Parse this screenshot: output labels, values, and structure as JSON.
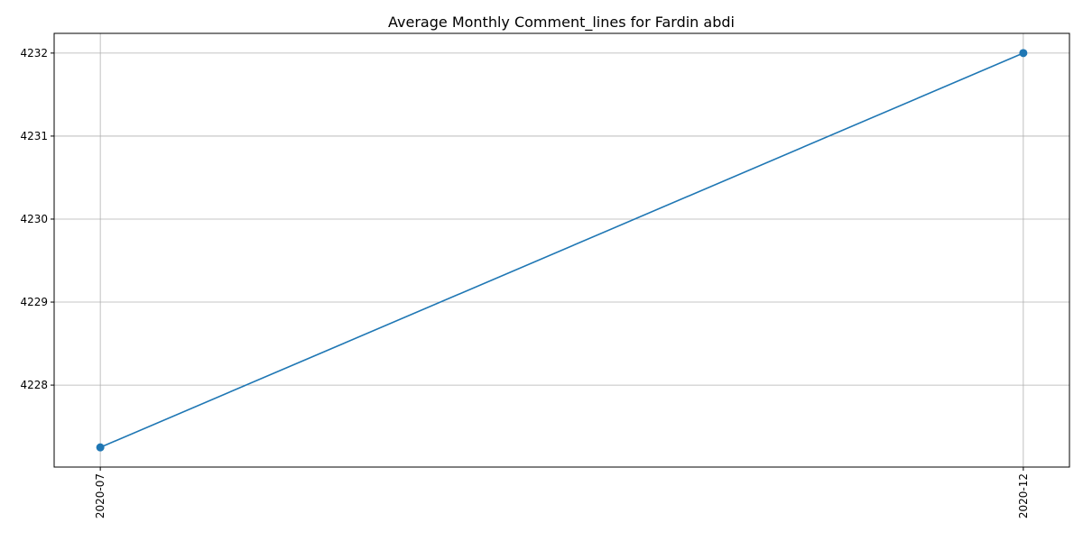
{
  "chart_data": {
    "type": "line",
    "title": "Average Monthly Comment_lines for Fardin abdi",
    "xlabel": "",
    "ylabel": "",
    "x": [
      "2020-07",
      "2020-12"
    ],
    "series": [
      {
        "values": [
          4227.25,
          4232.0
        ],
        "color": "#1f77b4",
        "marker": "circle"
      }
    ],
    "x_ticks": [
      "2020-07",
      "2020-12"
    ],
    "y_ticks": [
      4228,
      4229,
      4230,
      4231,
      4232
    ],
    "ylim": [
      4227.0125,
      4232.2375
    ],
    "grid": true,
    "legend": "none"
  }
}
